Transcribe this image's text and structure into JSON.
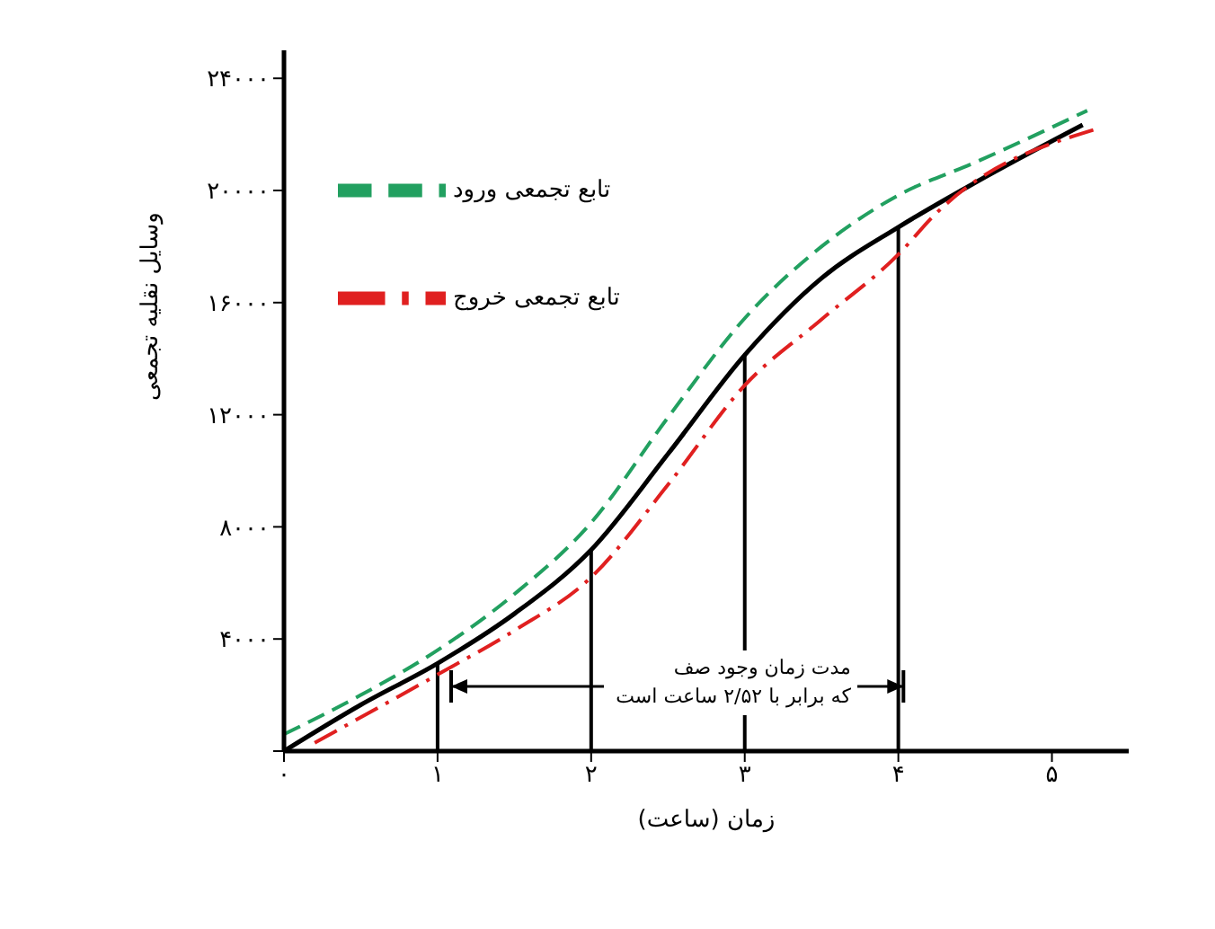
{
  "chart_data": {
    "type": "line",
    "xlabel": "زمان (ساعت)",
    "ylabel": "وسایل نقلیه تجمعی",
    "xlim": [
      0,
      5.5
    ],
    "ylim": [
      0,
      25000
    ],
    "xticks": [
      {
        "value": 0,
        "label": "۰"
      },
      {
        "value": 1,
        "label": "۱"
      },
      {
        "value": 2,
        "label": "۲"
      },
      {
        "value": 3,
        "label": "۳"
      },
      {
        "value": 4,
        "label": "۴"
      },
      {
        "value": 5,
        "label": "۵"
      }
    ],
    "yticks": [
      {
        "value": 0,
        "label": null
      },
      {
        "value": 4000,
        "label": "۴۰۰۰"
      },
      {
        "value": 8000,
        "label": "۸۰۰۰"
      },
      {
        "value": 12000,
        "label": "۱۲۰۰۰"
      },
      {
        "value": 16000,
        "label": "۱۶۰۰۰"
      },
      {
        "value": 20000,
        "label": "۲۰۰۰۰"
      },
      {
        "value": 24000,
        "label": "۲۴۰۰۰"
      }
    ],
    "legend": "top left",
    "marker": "none",
    "series": [
      {
        "color": "#000000",
        "line_style": "solid",
        "x": [
          0,
          0.5,
          1,
          1.5,
          2,
          2.5,
          3,
          3.5,
          4,
          4.5,
          5.2
        ],
        "values": [
          0,
          1650,
          3130,
          4900,
          7180,
          10600,
          14130,
          16870,
          18690,
          20280,
          22340
        ]
      },
      {
        "name": "تابع تجمعی ورود",
        "color": "#22a060",
        "line_style": "dashed",
        "x": [
          0,
          0.5,
          1,
          1.5,
          2,
          2.5,
          3,
          3.5,
          4,
          4.5,
          5.23
        ],
        "values": [
          600,
          2000,
          3600,
          5600,
          8150,
          11900,
          15440,
          18000,
          19830,
          21000,
          22850
        ]
      },
      {
        "name": "تابع تجمعی خروج",
        "color": "#e02020",
        "line_style": "dashdot",
        "x": [
          0.2,
          1,
          1.5,
          2,
          2.5,
          3,
          3.5,
          4,
          4.24,
          5.27
        ],
        "values": [
          300,
          2730,
          4300,
          6200,
          9500,
          13050,
          15400,
          17720,
          19150,
          22160
        ]
      }
    ],
    "ref_lines": [
      {
        "axis": "x",
        "value": 1,
        "color": "#000000"
      },
      {
        "axis": "x",
        "value": 2,
        "color": "#000000"
      },
      {
        "axis": "x",
        "value": 3,
        "color": "#000000"
      },
      {
        "axis": "x",
        "value": 4,
        "color": "#000000"
      }
    ],
    "annotations": [
      "مدت زمان وجود صف\nکه برابر با ۲/۵۲ ساعت است"
    ]
  }
}
